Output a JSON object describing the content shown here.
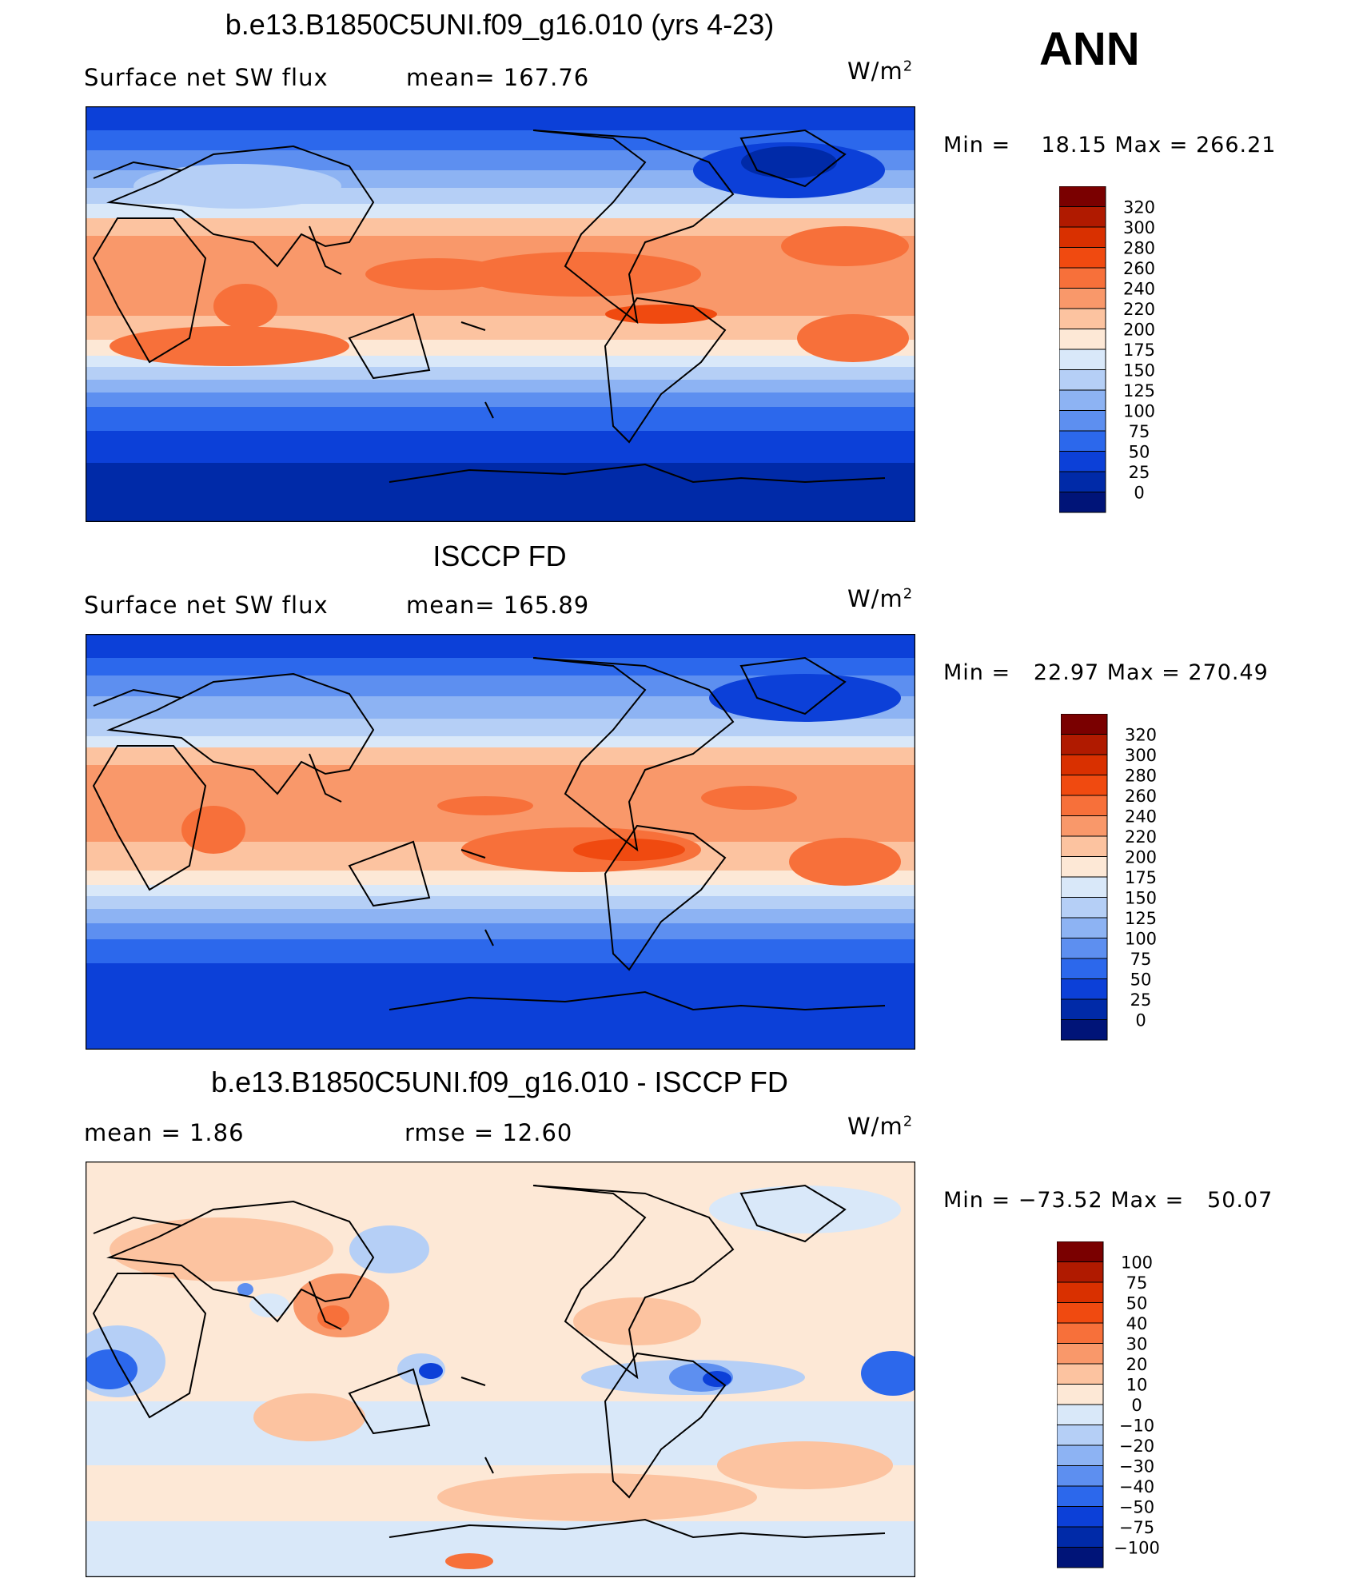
{
  "season": "ANN",
  "panels": [
    {
      "title": "b.e13.B1850C5UNI.f09_g16.010 (yrs 4-23)",
      "left_label": "Surface net SW flux",
      "middle_label": "mean=  167.76",
      "units_base": "W/m",
      "units_exp": "2",
      "min_label": "Min =",
      "min_value": "18.15",
      "max_label": "Max =",
      "max_value": "266.21",
      "colorbar_labels": [
        "320",
        "300",
        "280",
        "260",
        "240",
        "220",
        "200",
        "175",
        "150",
        "125",
        "100",
        "75",
        "50",
        "25",
        "0"
      ]
    },
    {
      "title": "ISCCP FD",
      "left_label": "Surface net SW flux",
      "middle_label": "mean=  165.89",
      "units_base": "W/m",
      "units_exp": "2",
      "min_label": "Min =",
      "min_value": "22.97",
      "max_label": "Max =",
      "max_value": "270.49",
      "colorbar_labels": [
        "320",
        "300",
        "280",
        "260",
        "240",
        "220",
        "200",
        "175",
        "150",
        "125",
        "100",
        "75",
        "50",
        "25",
        "0"
      ]
    },
    {
      "title": "b.e13.B1850C5UNI.f09_g16.010 - ISCCP FD",
      "left_label": "mean =     1.86",
      "middle_label": "rmse =    12.60",
      "units_base": "W/m",
      "units_exp": "2",
      "min_label": "Min =",
      "min_value": "−73.52",
      "max_label": "Max =",
      "max_value": "50.07",
      "colorbar_labels": [
        "100",
        "75",
        "50",
        "40",
        "30",
        "20",
        "10",
        "0",
        "−10",
        "−20",
        "−30",
        "−40",
        "−50",
        "−75",
        "−100"
      ]
    }
  ],
  "colorbar_colors_abs": [
    "#7a0000",
    "#b01a00",
    "#d93000",
    "#f04a10",
    "#f7703a",
    "#f9986a",
    "#fcc3a0",
    "#fde8d6",
    "#d9e8f9",
    "#b5cff6",
    "#8db3f3",
    "#5d8ff0",
    "#2c68ec",
    "#0c40d8",
    "#002aa8",
    "#001478"
  ],
  "colorbar_colors_diff": [
    "#7a0000",
    "#b01a00",
    "#d93000",
    "#f04a10",
    "#f7703a",
    "#f9986a",
    "#fcc3a0",
    "#fde8d6",
    "#d9e8f9",
    "#b5cff6",
    "#8db3f3",
    "#5d8ff0",
    "#2c68ec",
    "#0c40d8",
    "#002aa8",
    "#001478"
  ]
}
